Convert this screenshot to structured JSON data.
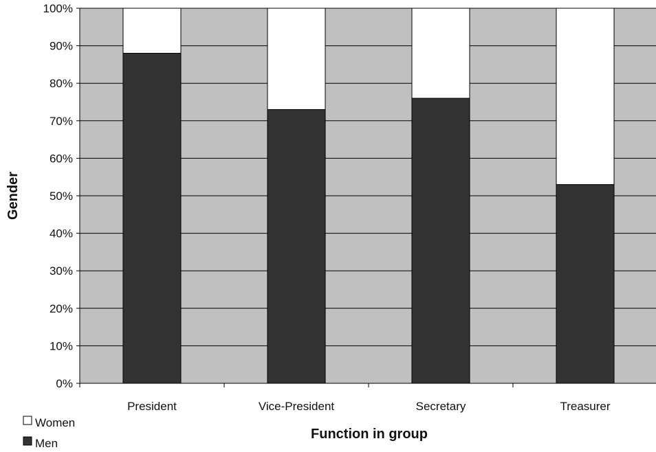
{
  "chart_data": {
    "type": "bar",
    "stacked": true,
    "categories": [
      "President",
      "Vice-President",
      "Secretary",
      "Treasurer"
    ],
    "series": [
      {
        "name": "Men",
        "values": [
          88,
          73,
          76,
          53
        ],
        "color": "#333333"
      },
      {
        "name": "Women",
        "values": [
          12,
          27,
          24,
          47
        ],
        "color": "#ffffff"
      }
    ],
    "xlabel": "Function in group",
    "ylabel": "Gender",
    "ylim": [
      0,
      100
    ],
    "yticks": [
      "0%",
      "10%",
      "20%",
      "30%",
      "40%",
      "50%",
      "60%",
      "70%",
      "80%",
      "90%",
      "100%"
    ],
    "grid": true,
    "plot_background": "#c0c0c0",
    "legend_position": "bottom-left",
    "legend": [
      "Women",
      "Men"
    ]
  }
}
